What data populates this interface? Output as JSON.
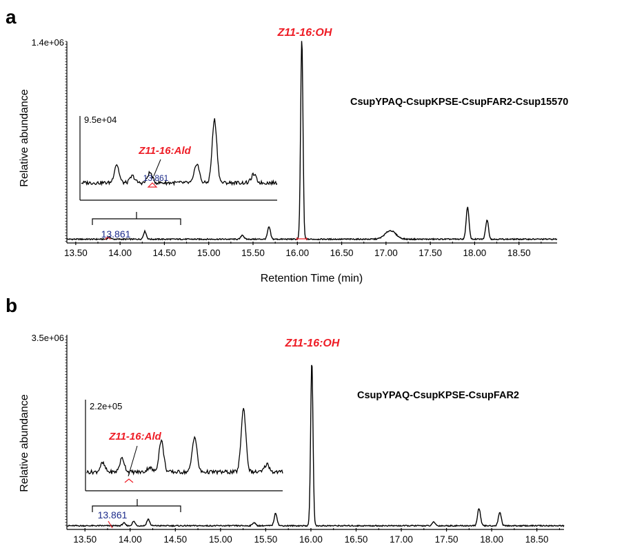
{
  "chart_data": [
    {
      "type": "line",
      "panel_label": "a",
      "ylabel": "Relative abundance",
      "xlabel": "Retention Time (min)",
      "y_max_label": "1.4e+06",
      "ylim": [
        0,
        1400000
      ],
      "xlim": [
        13.4,
        18.93
      ],
      "x_ticks": [
        "13.50",
        "14.00",
        "14.50",
        "15.00",
        "15.50",
        "16.00",
        "16.50",
        "17.00",
        "17.50",
        "18.00",
        "18.50"
      ],
      "sample_label": "CsupYPAQ-CsupKPSE-CsupFAR2-Csup15570",
      "main_peak_label": "Z11-16:OH",
      "main_peak": {
        "x": 16.05,
        "y": 1400000
      },
      "minor_peaks": [
        {
          "x": 13.88,
          "y": 15000
        },
        {
          "x": 14.28,
          "y": 55000
        },
        {
          "x": 15.38,
          "y": 30000
        },
        {
          "x": 15.68,
          "y": 85000
        },
        {
          "x": 17.05,
          "y": 60000
        },
        {
          "x": 17.92,
          "y": 225000
        },
        {
          "x": 18.14,
          "y": 135000
        }
      ],
      "marked_peak_label": "13.861",
      "inset": {
        "y_max_label": "9.5e+04",
        "xrange": [
          13.6,
          14.6
        ],
        "peak_label": "Z11-16:Ald",
        "retention_label": "13.861",
        "peaks": [
          {
            "x": 13.78,
            "y": 22000
          },
          {
            "x": 13.861,
            "y": 8000
          },
          {
            "x": 13.95,
            "y": 12000
          },
          {
            "x": 14.19,
            "y": 23000
          },
          {
            "x": 14.28,
            "y": 75000
          },
          {
            "x": 14.48,
            "y": 10000
          }
        ]
      }
    },
    {
      "type": "line",
      "panel_label": "b",
      "ylabel": "Relative abundance",
      "xlabel": "",
      "y_max_label": "3.5e+06",
      "ylim": [
        0,
        3500000
      ],
      "xlim": [
        13.3,
        18.8
      ],
      "x_ticks": [
        "13.50",
        "14.00",
        "14.50",
        "15.00",
        "15.50",
        "16.00",
        "16.50",
        "17.00",
        "17.50",
        "18.00",
        "18.50"
      ],
      "sample_label": "CsupYPAQ-CsupKPSE-CsupFAR2",
      "main_peak_label": "Z11-16:OH",
      "main_peak": {
        "x": 16.01,
        "y": 3000000
      },
      "minor_peaks": [
        {
          "x": 13.93,
          "y": 50000
        },
        {
          "x": 14.04,
          "y": 80000
        },
        {
          "x": 14.2,
          "y": 120000
        },
        {
          "x": 15.37,
          "y": 60000
        },
        {
          "x": 15.61,
          "y": 230000
        },
        {
          "x": 17.36,
          "y": 70000
        },
        {
          "x": 17.86,
          "y": 320000
        },
        {
          "x": 18.09,
          "y": 250000
        }
      ],
      "marked_peak_label": "13.861",
      "inset": {
        "y_max_label": "2.2e+05",
        "xrange": [
          13.6,
          14.6
        ],
        "peak_label": "Z11-16:Ald",
        "peaks": [
          {
            "x": 13.68,
            "y": 22000
          },
          {
            "x": 13.78,
            "y": 35000
          },
          {
            "x": 13.92,
            "y": 12000
          },
          {
            "x": 13.98,
            "y": 80000
          },
          {
            "x": 14.15,
            "y": 90000
          },
          {
            "x": 14.4,
            "y": 160000
          },
          {
            "x": 14.52,
            "y": 20000
          }
        ]
      }
    }
  ],
  "colors": {
    "trace": "#000000",
    "highlight": "#ee1c25",
    "retention": "#1b2a8a"
  }
}
